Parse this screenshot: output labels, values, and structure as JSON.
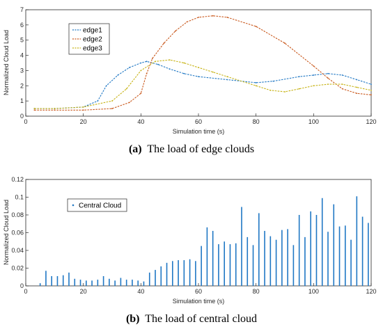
{
  "chart_data": [
    {
      "type": "line",
      "xlabel": "Simulation time (s)",
      "ylabel": "Normalized Cloud Load",
      "xlim": [
        0,
        120
      ],
      "ylim": [
        0,
        7
      ],
      "xticks": [
        0,
        20,
        40,
        60,
        80,
        100,
        120
      ],
      "yticks": [
        0,
        1,
        2,
        3,
        4,
        5,
        6,
        7
      ],
      "grid": false,
      "legend_position": "top-left",
      "caption_letter": "(a)",
      "caption_text": "The load of edge clouds",
      "series": [
        {
          "name": "edge1",
          "color": "#1f77c4",
          "x": [
            3,
            10,
            20,
            25,
            28,
            32,
            36,
            40,
            42,
            46,
            50,
            55,
            60,
            70,
            80,
            86,
            95,
            100,
            105,
            110,
            115,
            120
          ],
          "y": [
            0.5,
            0.5,
            0.6,
            1.0,
            2.0,
            2.7,
            3.2,
            3.5,
            3.6,
            3.4,
            3.1,
            2.8,
            2.6,
            2.4,
            2.2,
            2.3,
            2.6,
            2.7,
            2.8,
            2.7,
            2.4,
            2.1
          ]
        },
        {
          "name": "edge2",
          "color": "#c9581c",
          "x": [
            3,
            10,
            20,
            30,
            36,
            40,
            42,
            44,
            48,
            52,
            56,
            60,
            65,
            70,
            80,
            90,
            100,
            105,
            110,
            115,
            120
          ],
          "y": [
            0.4,
            0.4,
            0.4,
            0.5,
            0.9,
            1.5,
            2.8,
            3.8,
            4.8,
            5.6,
            6.2,
            6.5,
            6.6,
            6.5,
            5.9,
            4.8,
            3.3,
            2.5,
            1.8,
            1.5,
            1.4
          ]
        },
        {
          "name": "edge3",
          "color": "#c7b316",
          "x": [
            3,
            10,
            20,
            30,
            35,
            40,
            45,
            50,
            55,
            60,
            65,
            70,
            80,
            85,
            90,
            95,
            100,
            105,
            110,
            115,
            120
          ],
          "y": [
            0.5,
            0.5,
            0.6,
            1.0,
            1.8,
            3.0,
            3.6,
            3.7,
            3.5,
            3.2,
            2.9,
            2.6,
            2.0,
            1.7,
            1.6,
            1.8,
            2.0,
            2.1,
            2.1,
            1.9,
            1.7
          ]
        }
      ]
    },
    {
      "type": "bar",
      "xlabel": "Simulation time (s)",
      "ylabel": "Normalized Cloud Load",
      "xlim": [
        0,
        120
      ],
      "ylim": [
        0,
        0.12
      ],
      "xticks": [
        0,
        20,
        40,
        60,
        80,
        100,
        120
      ],
      "yticks": [
        0,
        0.02,
        0.04,
        0.06,
        0.08,
        0.1,
        0.12
      ],
      "grid": false,
      "legend_position": "top-left",
      "caption_letter": "(b)",
      "caption_text": "The load of central cloud",
      "series": [
        {
          "name": "Central Cloud",
          "color": "#1f77c4",
          "x": [
            5,
            7,
            9,
            11,
            13,
            15,
            17,
            19,
            21,
            23,
            25,
            27,
            29,
            31,
            33,
            35,
            37,
            39,
            41,
            43,
            45,
            47,
            49,
            51,
            53,
            55,
            57,
            59,
            61,
            63,
            65,
            67,
            69,
            71,
            73,
            75,
            77,
            79,
            81,
            83,
            85,
            87,
            89,
            91,
            93,
            95,
            97,
            99,
            101,
            103,
            105,
            107,
            109,
            111,
            113,
            115,
            117,
            119
          ],
          "y": [
            0.003,
            0.017,
            0.011,
            0.011,
            0.012,
            0.015,
            0.008,
            0.007,
            0.006,
            0.006,
            0.007,
            0.011,
            0.008,
            0.006,
            0.009,
            0.007,
            0.007,
            0.006,
            0.005,
            0.015,
            0.018,
            0.022,
            0.026,
            0.028,
            0.029,
            0.029,
            0.03,
            0.028,
            0.045,
            0.066,
            0.062,
            0.047,
            0.05,
            0.047,
            0.048,
            0.089,
            0.055,
            0.046,
            0.082,
            0.062,
            0.056,
            0.052,
            0.063,
            0.064,
            0.046,
            0.08,
            0.055,
            0.084,
            0.08,
            0.099,
            0.061,
            0.092,
            0.067,
            0.068,
            0.052,
            0.101,
            0.078,
            0.071
          ]
        }
      ]
    }
  ]
}
